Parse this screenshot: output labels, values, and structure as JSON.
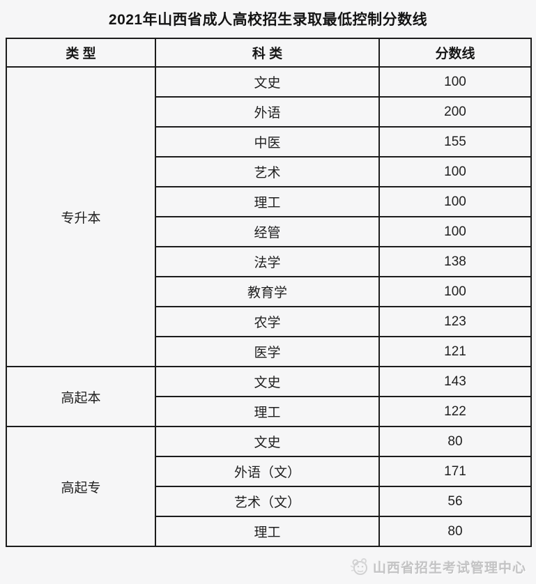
{
  "page": {
    "title": "2021年山西省成人高校招生录取最低控制分数线",
    "footer": {
      "logo": "mascot-seal-icon",
      "source": "山西省招生考试管理中心"
    }
  },
  "chart_data": {
    "type": "table",
    "title": "2021年山西省成人高校招生录取最低控制分数线",
    "columns": [
      "类 型",
      "科 类",
      "分数线"
    ],
    "groups": [
      {
        "type": "专升本",
        "rows": [
          [
            "文史",
            100
          ],
          [
            "外语",
            200
          ],
          [
            "中医",
            155
          ],
          [
            "艺术",
            100
          ],
          [
            "理工",
            100
          ],
          [
            "经管",
            100
          ],
          [
            "法学",
            138
          ],
          [
            "教育学",
            100
          ],
          [
            "农学",
            123
          ],
          [
            "医学",
            121
          ]
        ]
      },
      {
        "type": "高起本",
        "rows": [
          [
            "文史",
            143
          ],
          [
            "理工",
            122
          ]
        ]
      },
      {
        "type": "高起专",
        "rows": [
          [
            "文史",
            80
          ],
          [
            "外语（文）",
            171
          ],
          [
            "艺术（文）",
            56
          ],
          [
            "理工",
            80
          ]
        ]
      }
    ]
  }
}
